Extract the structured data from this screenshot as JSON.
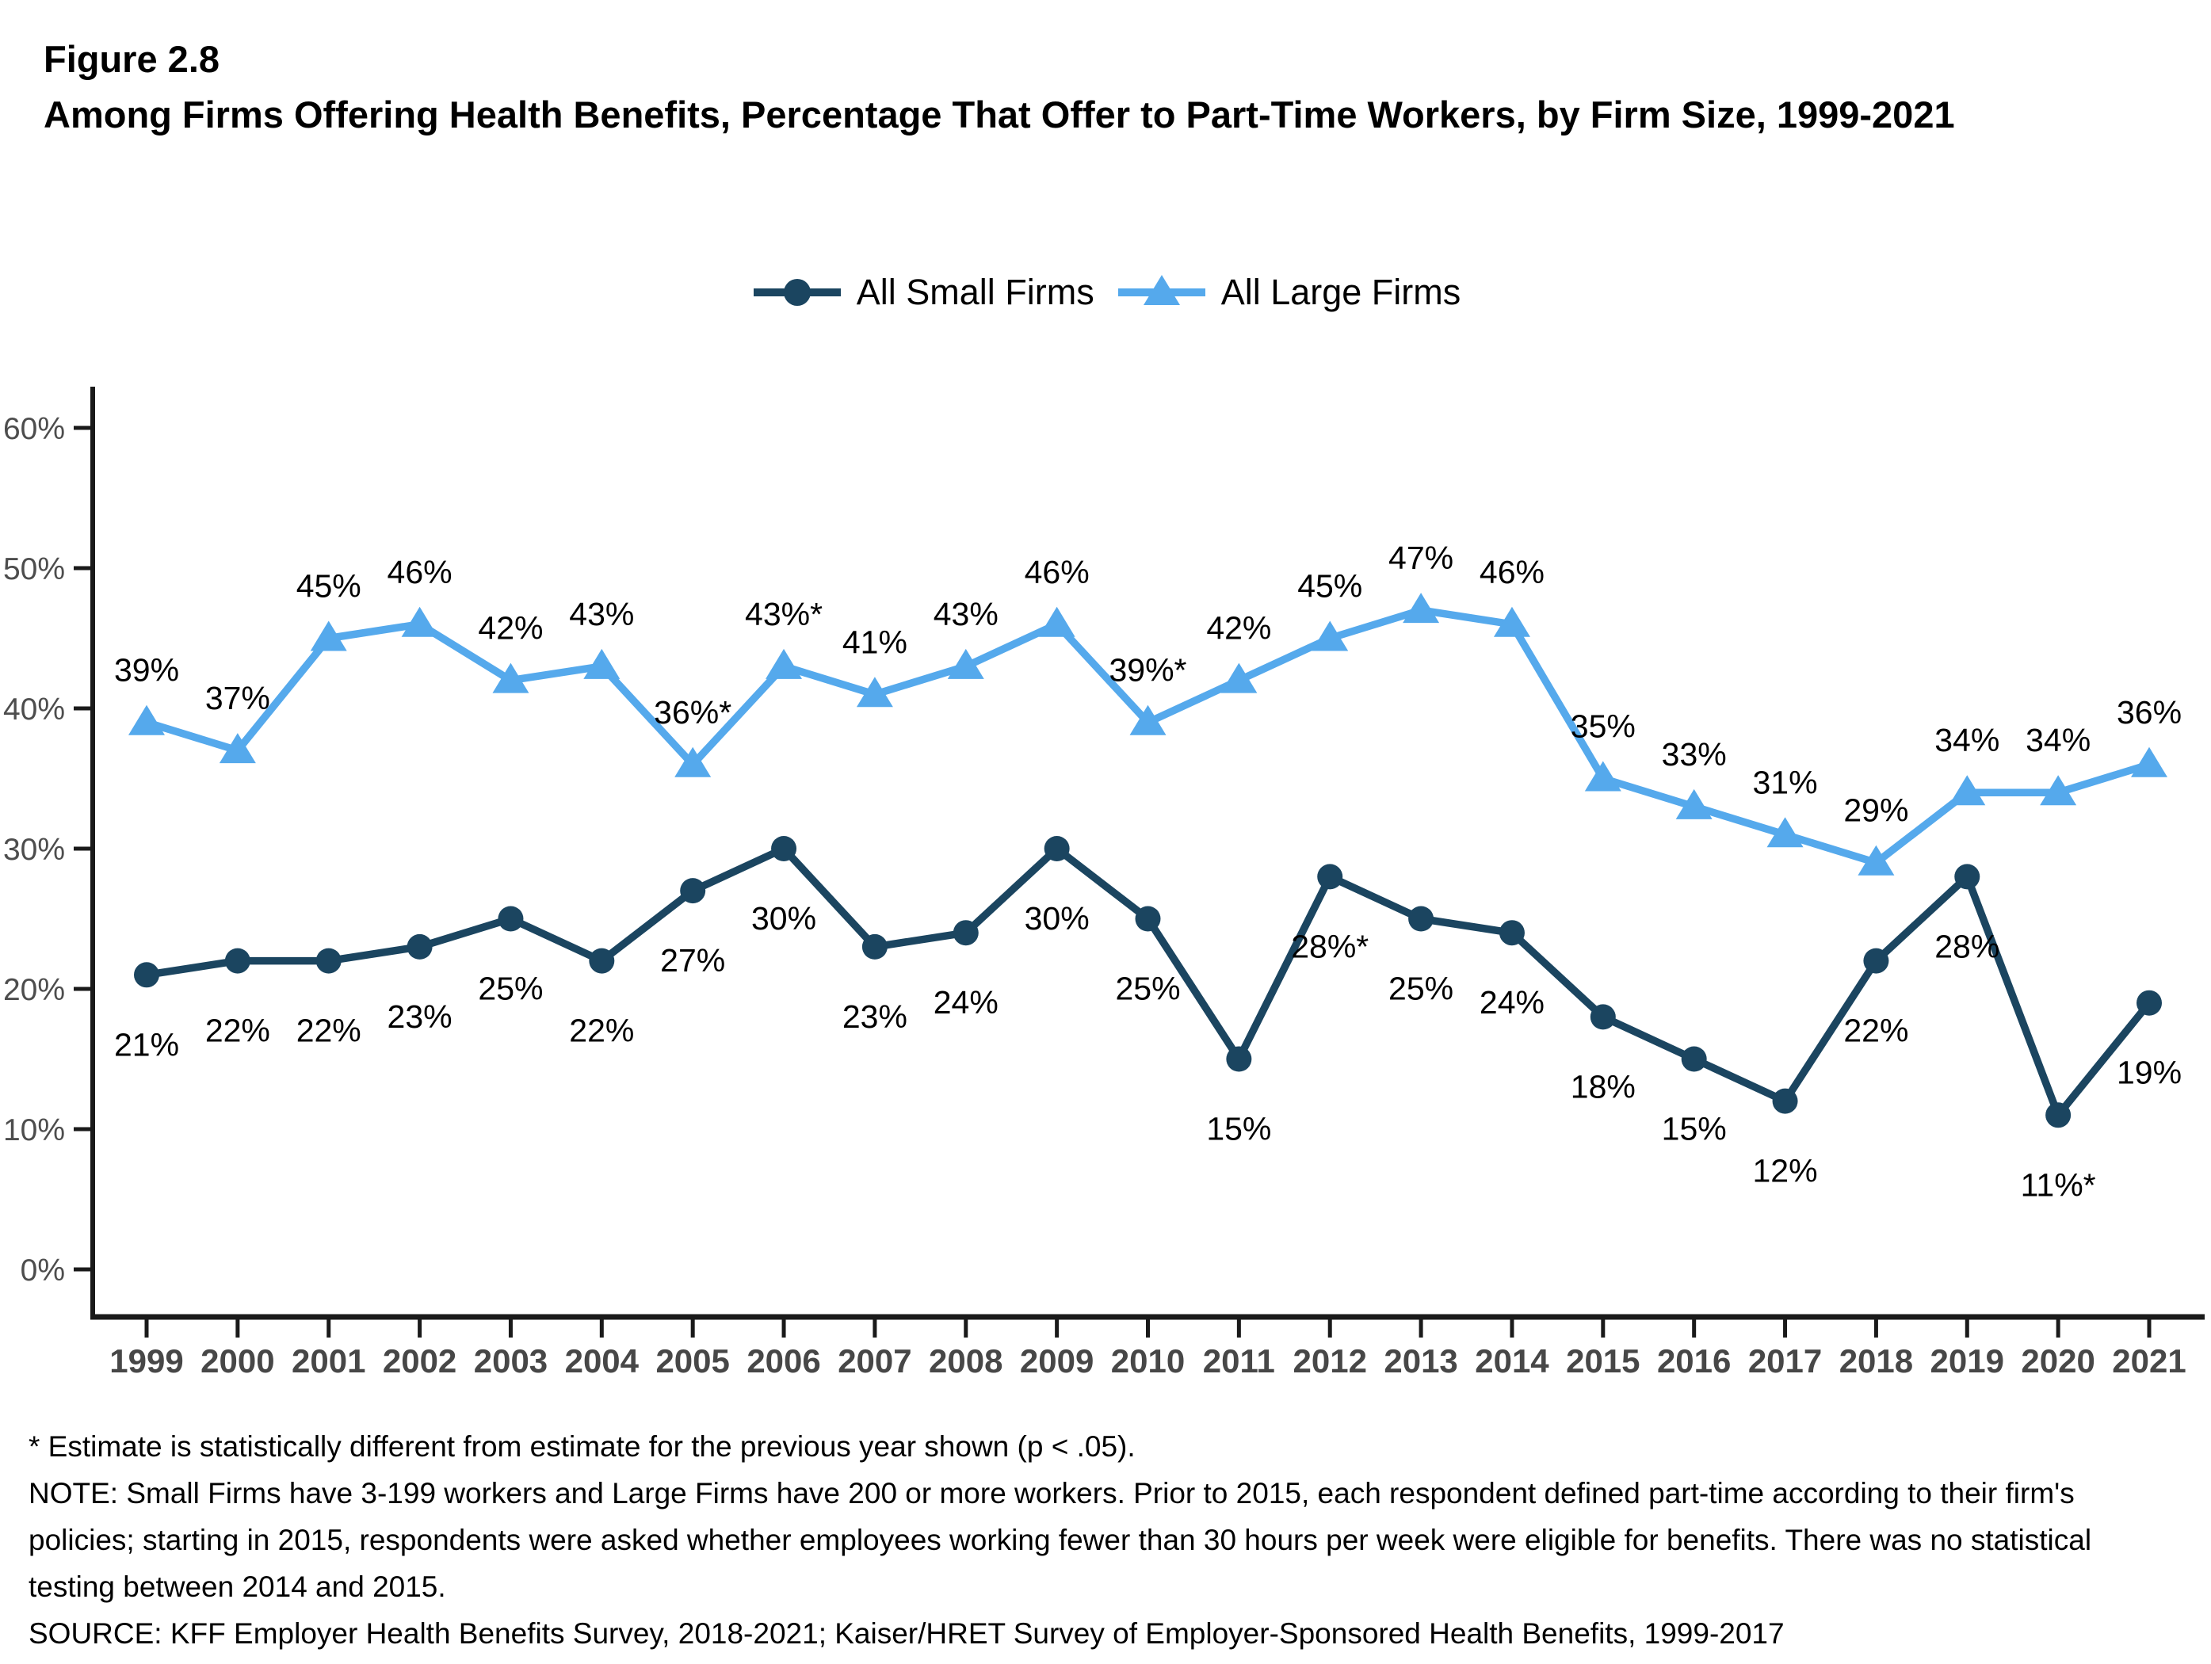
{
  "figure_label": "Figure 2.8",
  "title": "Among Firms Offering Health Benefits, Percentage That Offer to Part-Time Workers, by Firm Size, 1999-2021",
  "chart_data": {
    "type": "line",
    "title": "Among Firms Offering Health Benefits, Percentage That Offer to Part-Time Workers, by Firm Size, 1999-2021",
    "x": [
      "1999",
      "2000",
      "2001",
      "2002",
      "2003",
      "2004",
      "2005",
      "2006",
      "2007",
      "2008",
      "2009",
      "2010",
      "2011",
      "2012",
      "2013",
      "2014",
      "2015",
      "2016",
      "2017",
      "2018",
      "2019",
      "2020",
      "2021"
    ],
    "series": [
      {
        "name": "All Small Firms",
        "marker": "circle",
        "color": "#1B4560",
        "values": [
          21,
          22,
          22,
          23,
          25,
          22,
          27,
          30,
          23,
          24,
          30,
          25,
          15,
          28,
          25,
          24,
          18,
          15,
          12,
          22,
          28,
          11,
          19
        ],
        "labels": [
          "21%",
          "22%",
          "22%",
          "23%",
          "25%",
          "22%",
          "27%",
          "30%",
          "23%",
          "24%",
          "30%",
          "25%",
          "15%",
          "28%*",
          "25%",
          "24%",
          "18%",
          "15%",
          "12%",
          "22%",
          "28%",
          "11%*",
          "19%"
        ],
        "label_side": "below"
      },
      {
        "name": "All Large Firms",
        "marker": "triangle",
        "color": "#55A9EC",
        "values": [
          39,
          37,
          45,
          46,
          42,
          43,
          36,
          43,
          41,
          43,
          46,
          39,
          42,
          45,
          47,
          46,
          35,
          33,
          31,
          29,
          34,
          34,
          36
        ],
        "labels": [
          "39%",
          "37%",
          "45%",
          "46%",
          "42%",
          "43%",
          "36%*",
          "43%*",
          "41%",
          "43%",
          "46%",
          "39%*",
          "42%",
          "45%",
          "47%",
          "46%",
          "35%",
          "33%",
          "31%",
          "29%",
          "34%",
          "34%",
          "36%"
        ],
        "label_side": "above"
      }
    ],
    "ylim": [
      0,
      60
    ],
    "yticks": [
      "0%",
      "10%",
      "20%",
      "30%",
      "40%",
      "50%",
      "60%"
    ],
    "ytick_step": 10,
    "grid": false,
    "legend_position": "top-center",
    "axis_color": "#1a1a1a",
    "ytick_label_color": "#4d4d4d",
    "xtick_label_color": "#474747"
  },
  "footnotes": {
    "significance": "* Estimate is statistically different from estimate for the previous year shown (p < .05).",
    "note": "NOTE: Small Firms have 3-199 workers and Large Firms have 200 or more workers. Prior to 2015, each respondent defined part-time according to their firm's policies; starting in 2015, respondents were asked whether employees working fewer than 30 hours per week were eligible for benefits. There was no statistical testing between 2014 and 2015.",
    "source": "SOURCE: KFF Employer Health Benefits Survey, 2018-2021; Kaiser/HRET Survey of Employer-Sponsored Health Benefits, 1999-2017"
  }
}
